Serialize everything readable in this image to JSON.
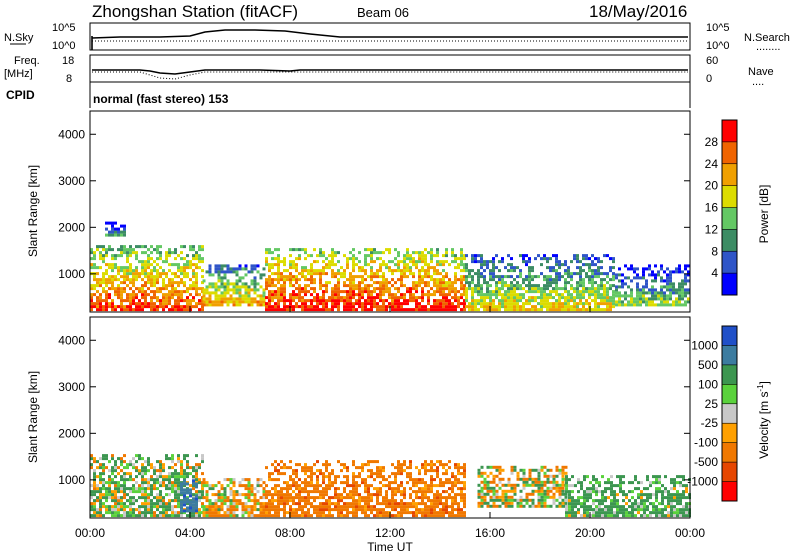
{
  "header": {
    "title": "Zhongshan Station (fitACF)",
    "beam": "Beam 06",
    "date": "18/May/2016"
  },
  "nsky_panel": {
    "left_label": "N.Sky",
    "left_tick_top": "10^5",
    "left_tick_bottom": "10^0",
    "right_tick_top": "10^5",
    "right_tick_bottom": "10^0",
    "right_label": "N.Search",
    "right_label_line": "........"
  },
  "freq_panel": {
    "left_label_line1": "Freq.",
    "left_label_line2": "[MHz]",
    "left_tick_top": "18",
    "left_tick_bottom": "8",
    "right_tick_top": "60",
    "right_tick_bottom": "0",
    "right_label": "Nave",
    "right_label_line": "...."
  },
  "cpid_panel": {
    "label": "CPID",
    "value": "normal (fast stereo) 153"
  },
  "power_panel": {
    "ylabel": "Slant Range [km]",
    "yticks": [
      "1000",
      "2000",
      "3000",
      "4000"
    ],
    "colorbar_label": "Power [dB]",
    "colorbar_ticks": [
      "4",
      "8",
      "12",
      "16",
      "20",
      "24",
      "28"
    ],
    "colorbar_colors": [
      "#0000ff",
      "#2f55c8",
      "#3c8c64",
      "#64c864",
      "#dcdc00",
      "#f0a000",
      "#f06400",
      "#ff0000"
    ]
  },
  "velocity_panel": {
    "ylabel": "Slant Range [km]",
    "yticks": [
      "1000",
      "2000",
      "3000",
      "4000"
    ],
    "colorbar_label": "Velocity [m s",
    "colorbar_label_sup": "-1",
    "colorbar_label_end": "]",
    "colorbar_ticks": [
      "1000",
      "500",
      "100",
      "25",
      "-25",
      "-100",
      "-500",
      "-1000"
    ],
    "colorbar_colors": [
      "#2050c8",
      "#3c7ca0",
      "#3c9650",
      "#5ad23c",
      "#c8c8c8",
      "#ffa000",
      "#f07800",
      "#e64600",
      "#ff0000"
    ]
  },
  "x_axis": {
    "ticks": [
      "00:00",
      "04:00",
      "08:00",
      "12:00",
      "16:00",
      "20:00",
      "00:00"
    ],
    "label": "Time UT"
  },
  "chart_data": {
    "type": "heatmap",
    "title": "Zhongshan Station (fitACF)",
    "subtitle": "Beam 06",
    "date": "18/May/2016",
    "xlabel": "Time UT",
    "ylabel": "Slant Range [km]",
    "xlim_hours": [
      0,
      24
    ],
    "ylim_km": [
      180,
      4500
    ],
    "panels": [
      {
        "name": "Power",
        "zlabel": "Power [dB]",
        "zlim": [
          0,
          32
        ],
        "zticks": [
          4,
          8,
          12,
          16,
          20,
          24,
          28
        ],
        "echo_regions": [
          {
            "t_start": 0.0,
            "t_end": 4.5,
            "range_min": 200,
            "range_max": 1600,
            "typical_power_db": 22
          },
          {
            "t_start": 4.5,
            "t_end": 7.0,
            "range_min": 300,
            "range_max": 1200,
            "typical_power_db": 16
          },
          {
            "t_start": 7.0,
            "t_end": 15.0,
            "range_min": 200,
            "range_max": 1500,
            "typical_power_db": 24
          },
          {
            "t_start": 15.0,
            "t_end": 21.0,
            "range_min": 200,
            "range_max": 1400,
            "typical_power_db": 14
          },
          {
            "t_start": 21.0,
            "t_end": 24.0,
            "range_min": 300,
            "range_max": 1200,
            "typical_power_db": 10
          },
          {
            "t_start": 0.6,
            "t_end": 1.4,
            "range_min": 1800,
            "range_max": 2100,
            "typical_power_db": 6
          }
        ]
      },
      {
        "name": "Velocity",
        "zlabel": "Velocity [m s-1]",
        "zlim": [
          -1000,
          1000
        ],
        "zticks": [
          1000,
          500,
          100,
          25,
          -25,
          -100,
          -500,
          -1000
        ],
        "echo_regions": [
          {
            "t_start": 0.0,
            "t_end": 4.5,
            "range_min": 200,
            "range_max": 1500,
            "typical_velocity": 100
          },
          {
            "t_start": 3.6,
            "t_end": 4.3,
            "range_min": 300,
            "range_max": 1000,
            "typical_velocity": 800
          },
          {
            "t_start": 4.5,
            "t_end": 7.0,
            "range_min": 200,
            "range_max": 1000,
            "typical_velocity": -100
          },
          {
            "t_start": 7.0,
            "t_end": 15.0,
            "range_min": 200,
            "range_max": 1400,
            "typical_velocity": -300
          },
          {
            "t_start": 15.5,
            "t_end": 19.0,
            "range_min": 400,
            "range_max": 1300,
            "typical_velocity": 0
          },
          {
            "t_start": 19.0,
            "t_end": 24.0,
            "range_min": 200,
            "range_max": 1100,
            "typical_velocity": 200
          }
        ]
      }
    ]
  }
}
